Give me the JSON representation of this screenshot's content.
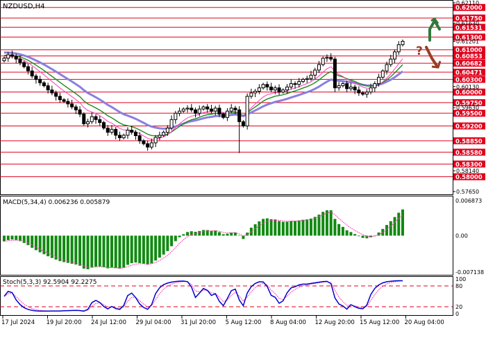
{
  "title": "NZDUSD,H4",
  "colors": {
    "up": "#000000",
    "down": "#000000",
    "level": "#e0001b",
    "ema_fast": "#ff3db5",
    "ema_mid": "#1e8a1e",
    "ema_slow": "#8a7fe0",
    "macd_hist": "#118a11",
    "macd_signal": "#ff3db5",
    "stoch_main": "#0000cc",
    "stoch_signal": "#ff3db5",
    "arrow_up": "#2f7a3b",
    "arrow_down": "#9a3d22",
    "axis_badge": "#e0001b"
  },
  "price_panel": {
    "levels": [
      "0.62000",
      "0.61750",
      "0.61531",
      "0.61300",
      "0.61000",
      "0.60853",
      "0.60682",
      "0.60471",
      "0.60300",
      "0.60000",
      "0.59750",
      "0.59500",
      "0.59200",
      "0.58850",
      "0.58580",
      "0.58300",
      "0.58000"
    ],
    "small_labels": [
      "0.62110",
      "0.61630",
      "0.61201",
      "0.60130",
      "0.59630",
      "0.58140",
      "0.57650"
    ],
    "last_price_label": "0.61201",
    "question_mark": "?",
    "range": [
      0.5765,
      0.6211
    ]
  },
  "macd_panel": {
    "label": "MACD(5,34,4) 0.006236 0.005879",
    "axis_labels": [
      "0.006873",
      "0.00",
      "-0.007138"
    ]
  },
  "stoch_panel": {
    "label": "Stoch(5,3,3) 92.5904 92.2275",
    "axis_labels": [
      "100",
      "80",
      "20",
      "0"
    ]
  },
  "time_axis": [
    "17 Jul 2024",
    "19 Jul 20:00",
    "24 Jul 12:00",
    "29 Jul 04:00",
    "31 Jul 20:00",
    "5 Aug 12:00",
    "8 Aug 04:00",
    "12 Aug 20:00",
    "15 Aug 12:00",
    "20 Aug 04:00"
  ],
  "chart_data": {
    "type": "candlestick",
    "symbol": "NZDUSD",
    "timeframe": "H4",
    "close_series": [
      0.608,
      0.6088,
      0.6085,
      0.6078,
      0.607,
      0.606,
      0.605,
      0.6038,
      0.603,
      0.6022,
      0.6015,
      0.6005,
      0.5998,
      0.599,
      0.5982,
      0.5978,
      0.5972,
      0.5965,
      0.5958,
      0.5948,
      0.5925,
      0.593,
      0.5942,
      0.5935,
      0.5928,
      0.5915,
      0.5905,
      0.5912,
      0.5898,
      0.5892,
      0.5898,
      0.591,
      0.5905,
      0.5897,
      0.5885,
      0.5878,
      0.587,
      0.588,
      0.5893,
      0.5898,
      0.5905,
      0.5915,
      0.5935,
      0.595,
      0.5955,
      0.596,
      0.5962,
      0.5958,
      0.595,
      0.596,
      0.5965,
      0.596,
      0.5955,
      0.5962,
      0.5948,
      0.594,
      0.5955,
      0.5962,
      0.5958,
      0.593,
      0.592,
      0.599,
      0.5998,
      0.6002,
      0.601,
      0.6018,
      0.6012,
      0.6005,
      0.601,
      0.6,
      0.6005,
      0.6012,
      0.602,
      0.6018,
      0.6025,
      0.603,
      0.6032,
      0.604,
      0.6052,
      0.6065,
      0.608,
      0.6082,
      0.6078,
      0.601,
      0.6015,
      0.602,
      0.6008,
      0.6012,
      0.6005,
      0.5998,
      0.5995,
      0.6,
      0.601,
      0.602,
      0.6035,
      0.605,
      0.6065,
      0.6078,
      0.6095,
      0.6112,
      0.612
    ],
    "indicators": [
      "EMA fast",
      "EMA mid",
      "EMA slow",
      "MACD(5,34,4)",
      "Stoch(5,3,3)"
    ]
  }
}
